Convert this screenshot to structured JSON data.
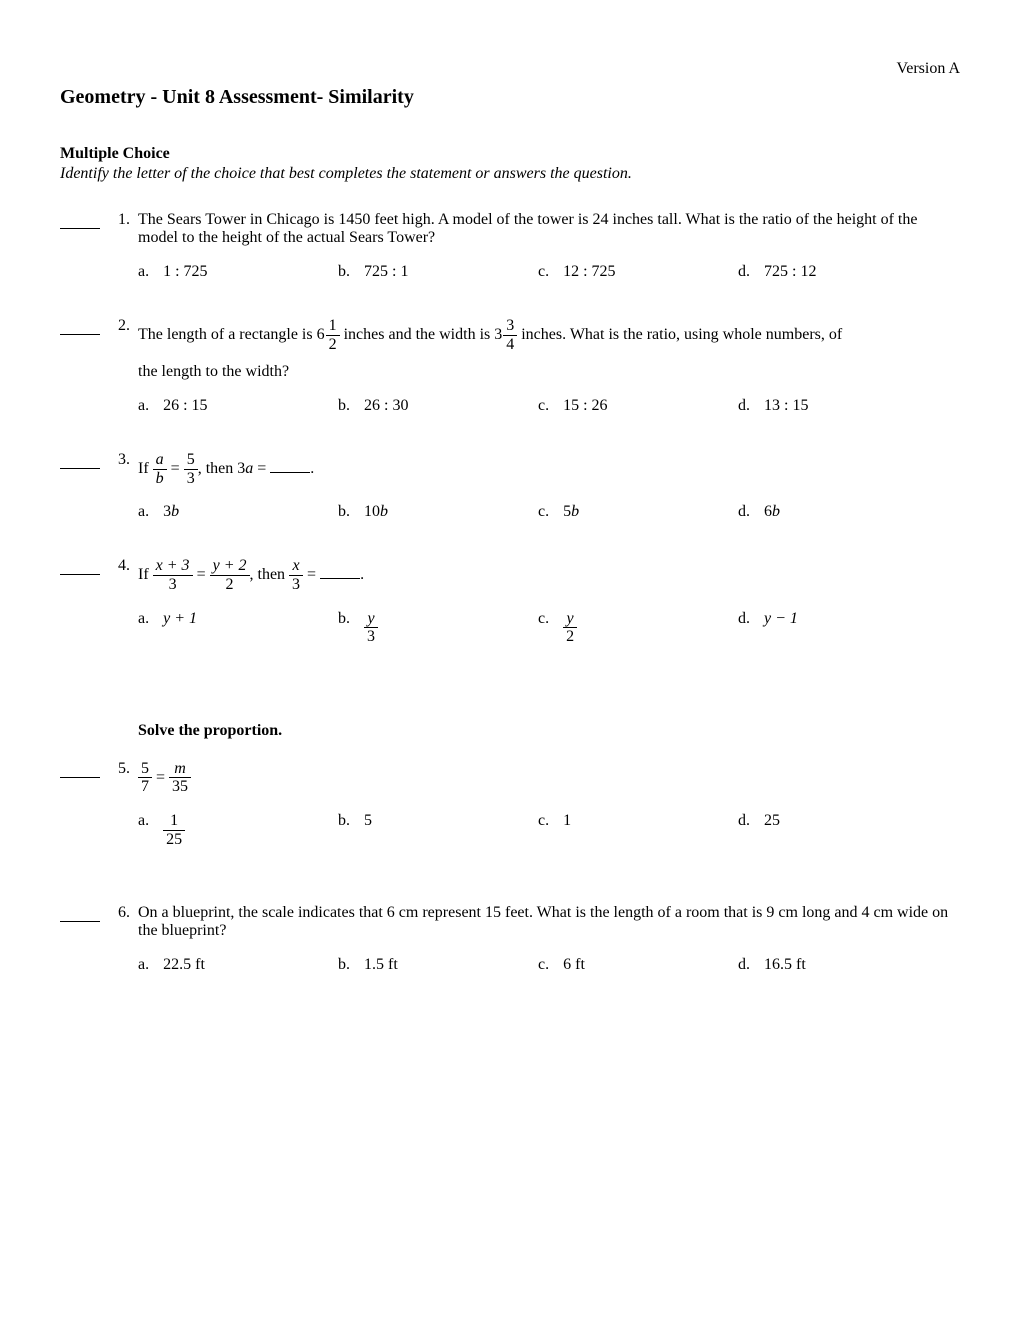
{
  "version": "Version A",
  "title": "Geometry - Unit 8 Assessment- Similarity",
  "section_heading": "Multiple Choice",
  "instructions": "Identify the letter of the choice that best completes the statement or answers the question.",
  "q1": {
    "num": "1.",
    "text": "The Sears Tower in Chicago is 1450 feet high. A model of the tower is 24 inches tall. What is the ratio of the height of the model to the height of the actual Sears Tower?",
    "a": "1 : 725",
    "b": "725 : 1",
    "c": "12 : 725",
    "d": "725 : 12"
  },
  "q2": {
    "num": "2.",
    "text_pre": "The length of a rectangle is ",
    "mixed1_whole": "6",
    "mixed1_num": "1",
    "mixed1_den": "2",
    "text_mid": " inches and the width is ",
    "mixed2_whole": "3",
    "mixed2_num": "3",
    "mixed2_den": "4",
    "text_post": " inches. What is the ratio, using whole numbers, of",
    "text_line2": "the length to the width?",
    "a": "26 : 15",
    "b": "26 : 30",
    "c": "15 : 26",
    "d": "13 : 15"
  },
  "q3": {
    "num": "3.",
    "text_pre": "If ",
    "frac1_num": "a",
    "frac1_den": "b",
    "eq": " = ",
    "frac2_num": "5",
    "frac2_den": "3",
    "text_mid": ", then 3",
    "var_a": "a",
    "text_post": " = ",
    "period": ".",
    "a_pre": "3",
    "a_var": "b",
    "b_pre": "10",
    "b_var": "b",
    "c_pre": "5",
    "c_var": "b",
    "d_pre": "6",
    "d_var": "b"
  },
  "q4": {
    "num": "4.",
    "text_pre": "If ",
    "frac1_num": "x + 3",
    "frac1_den": "3",
    "eq1": " = ",
    "frac2_num": "y + 2",
    "frac2_den": "2",
    "text_mid": ", then ",
    "frac3_num": "x",
    "frac3_den": "3",
    "eq2": " = ",
    "period": ".",
    "a": "y + 1",
    "b_num": "y",
    "b_den": "3",
    "c_num": "y",
    "c_den": "2",
    "d": "y − 1"
  },
  "solve_heading": "Solve the proportion.",
  "q5": {
    "num": "5.",
    "frac1_num": "5",
    "frac1_den": "7",
    "eq": " = ",
    "frac2_num": "m",
    "frac2_den": "35",
    "a_num": "1",
    "a_den": "25",
    "b": "5",
    "c": "1",
    "d": "25"
  },
  "q6": {
    "num": "6.",
    "text": "On a blueprint, the scale indicates that 6 cm represent 15 feet. What is the length of a room that is 9 cm long and 4 cm wide on the blueprint?",
    "a": "22.5 ft",
    "b": "1.5 ft",
    "c": "6 ft",
    "d": "16.5 ft"
  },
  "opt_labels": {
    "a": "a.",
    "b": "b.",
    "c": "c.",
    "d": "d."
  }
}
